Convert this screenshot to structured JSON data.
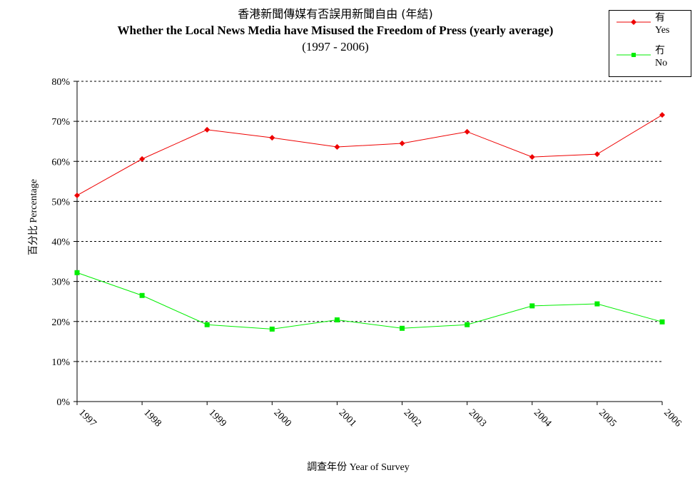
{
  "title": {
    "zh": "香港新聞傳媒有否誤用新聞自由 (年結)",
    "en": "Whether the Local News Media have Misused the Freedom of Press  (yearly average)",
    "period": "(1997 - 2006)"
  },
  "axes": {
    "ylabel_zh": "百分比",
    "ylabel_en": "Percentage",
    "xlabel_zh": "調查年份",
    "xlabel_en": "Year of Survey"
  },
  "legend": {
    "yes_zh": "有",
    "yes_en": "Yes",
    "no_zh": "冇",
    "no_en": "No"
  },
  "colors": {
    "yes": "#ee0000",
    "no": "#00ee00",
    "grid": "#000000"
  },
  "chart_data": {
    "type": "line",
    "title": "香港新聞傳媒有否誤用新聞自由 (年結) Whether the Local News Media have Misused the Freedom of Press  (yearly average) (1997 - 2006)",
    "xlabel": "調查年份 Year of Survey",
    "ylabel": "百分比 Percentage",
    "x": [
      "1997",
      "1998",
      "1999",
      "2000",
      "2001",
      "2002",
      "2003",
      "2004",
      "2005",
      "2006"
    ],
    "y_ticks": [
      "0%",
      "10%",
      "20%",
      "30%",
      "40%",
      "50%",
      "60%",
      "70%",
      "80%"
    ],
    "ylim": [
      0,
      80
    ],
    "grid": "horizontal dashed",
    "legend_position": "top-right",
    "series": [
      {
        "name": "有 Yes",
        "marker": "diamond",
        "color": "#ee0000",
        "values": [
          51.5,
          60.6,
          67.9,
          65.9,
          63.6,
          64.5,
          67.4,
          61.1,
          61.8,
          71.6
        ]
      },
      {
        "name": "冇 No",
        "marker": "square",
        "color": "#00ee00",
        "values": [
          32.2,
          26.5,
          19.2,
          18.1,
          20.4,
          18.3,
          19.2,
          23.9,
          24.4,
          19.9
        ]
      }
    ]
  }
}
